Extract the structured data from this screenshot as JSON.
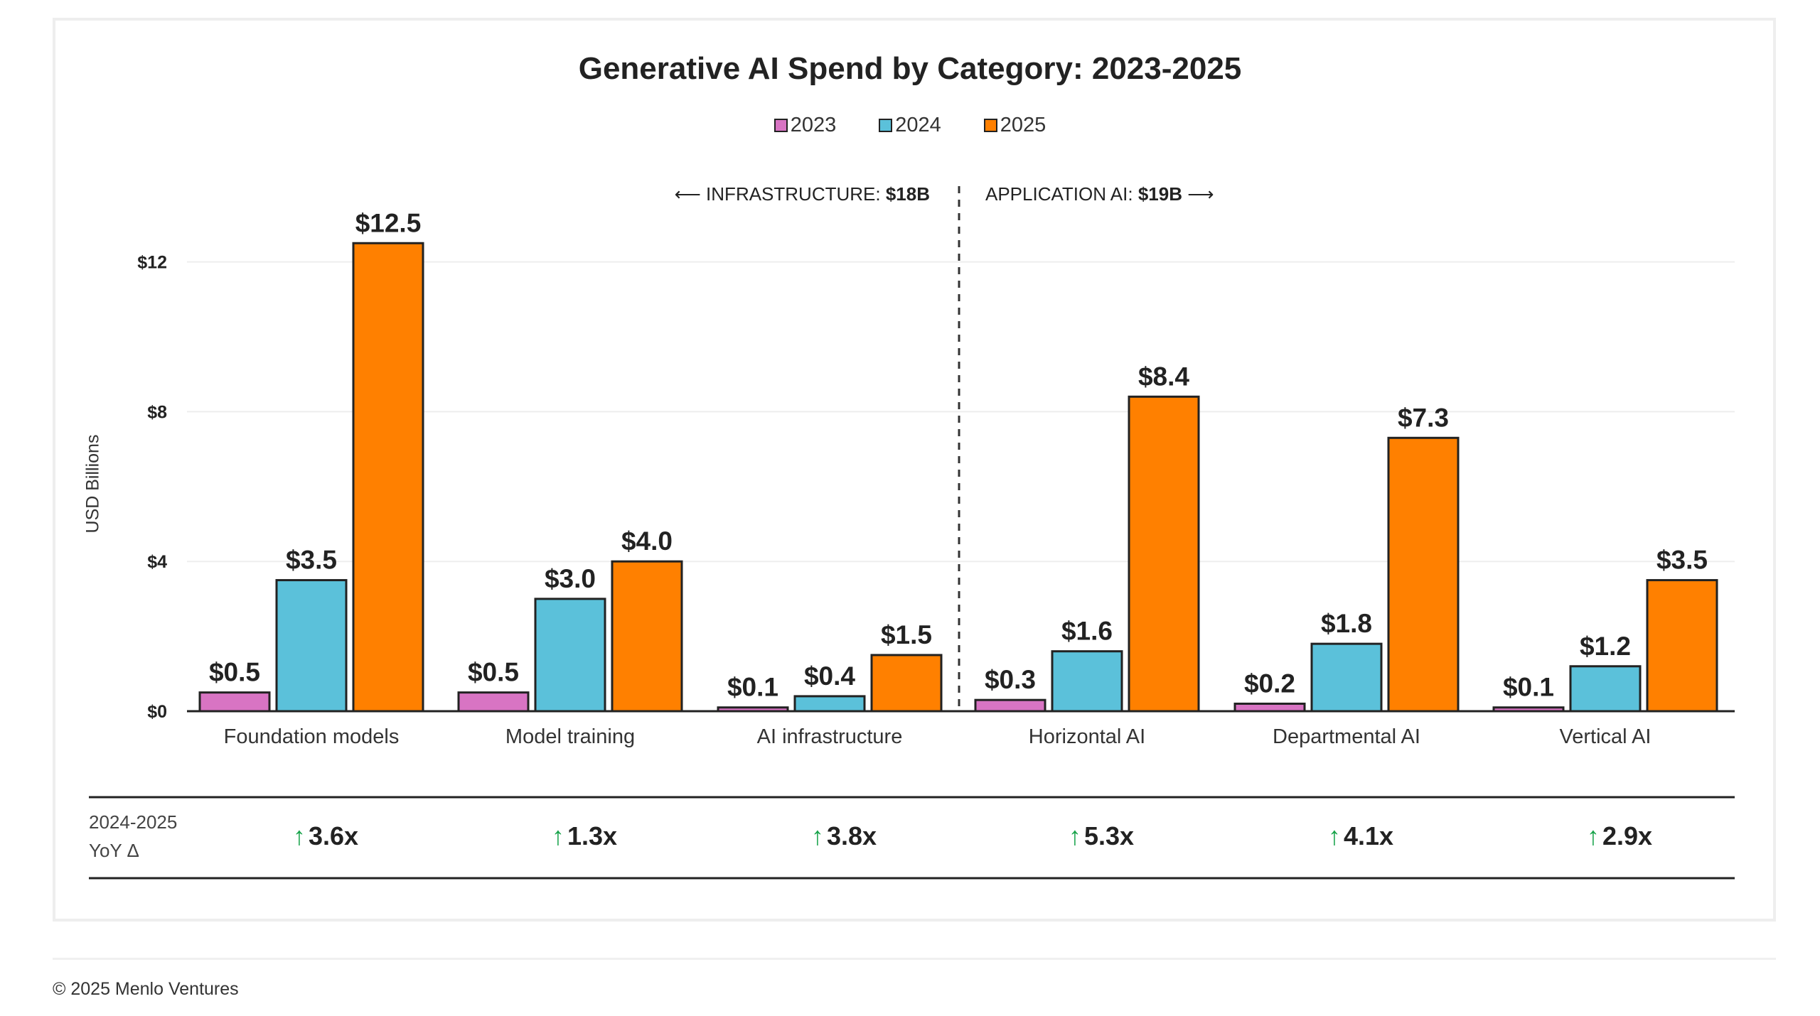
{
  "chart_data": {
    "type": "bar",
    "title": "Generative AI Spend by Category: 2023-2025",
    "ylabel": "USD Billions",
    "xlabel": "",
    "ylim": [
      0,
      12.5
    ],
    "yticks": [
      0,
      4,
      8,
      12
    ],
    "ytick_labels": [
      "$0",
      "$4",
      "$8",
      "$12"
    ],
    "grid": true,
    "legend_position": "top-center",
    "categories": [
      "Foundation models",
      "Model training",
      "AI infrastructure",
      "Horizontal AI",
      "Departmental AI",
      "Vertical AI"
    ],
    "series": [
      {
        "name": "2023",
        "color": "#d874c3",
        "values": [
          0.5,
          0.5,
          0.1,
          0.3,
          0.2,
          0.1
        ],
        "labels": [
          "$0.5",
          "$0.5",
          "$0.1",
          "$0.3",
          "$0.2",
          "$0.1"
        ]
      },
      {
        "name": "2024",
        "color": "#5bc1da",
        "values": [
          3.5,
          3.0,
          0.4,
          1.6,
          1.8,
          1.2
        ],
        "labels": [
          "$3.5",
          "$3.0",
          "$0.4",
          "$1.6",
          "$1.8",
          "$1.2"
        ]
      },
      {
        "name": "2025",
        "color": "#ff8000",
        "values": [
          12.5,
          4.0,
          1.5,
          8.4,
          7.3,
          3.5
        ],
        "labels": [
          "$12.5",
          "$4.0",
          "$1.5",
          "$8.4",
          "$7.3",
          "$3.5"
        ]
      }
    ],
    "annotations": {
      "left_prefix": "⟵ INFRASTRUCTURE: ",
      "left_value": "$18B",
      "right_prefix": "APPLICATION AI: ",
      "right_value": "$19B",
      "right_suffix": " ⟶"
    },
    "yoy": {
      "label_line1": "2024-2025",
      "label_line2": "YoY Δ",
      "arrow": "🡑",
      "values": [
        "3.6x",
        "1.3x",
        "3.8x",
        "5.3x",
        "4.1x",
        "2.9x"
      ]
    }
  },
  "footer": {
    "copyright": "© 2025 Menlo Ventures"
  },
  "colors": {
    "positive": "#17a34a",
    "axis": "#222222",
    "grid": "#eeeeee"
  }
}
